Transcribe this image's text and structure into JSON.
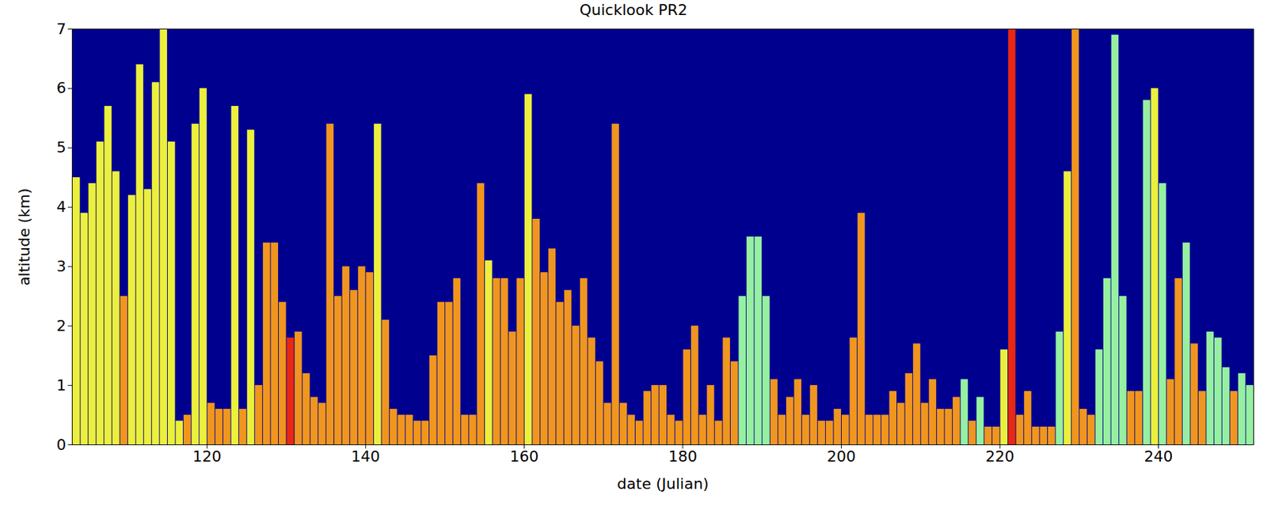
{
  "chart_data": {
    "type": "bar",
    "title": "Quicklook PR2",
    "x_label": "date (Julian)",
    "y_label": "altitude (km)",
    "xlim": [
      103,
      252
    ],
    "xticks": [
      120,
      140,
      160,
      180,
      200,
      220,
      240
    ],
    "ylim": [
      0,
      7
    ],
    "yticks": [
      0,
      1,
      2,
      3,
      4,
      5,
      6,
      7
    ],
    "grid": false,
    "x": [
      103,
      104,
      105,
      106,
      107,
      108,
      109,
      110,
      111,
      112,
      113,
      114,
      115,
      116,
      117,
      118,
      119,
      120,
      121,
      122,
      123,
      124,
      125,
      126,
      127,
      128,
      129,
      130,
      131,
      132,
      133,
      134,
      135,
      136,
      137,
      138,
      139,
      140,
      141,
      142,
      143,
      144,
      145,
      146,
      147,
      148,
      149,
      150,
      151,
      152,
      153,
      154,
      155,
      156,
      157,
      158,
      159,
      160,
      161,
      162,
      163,
      164,
      165,
      166,
      167,
      168,
      169,
      170,
      171,
      172,
      173,
      174,
      175,
      176,
      177,
      178,
      179,
      180,
      181,
      182,
      183,
      184,
      185,
      186,
      187,
      188,
      189,
      190,
      191,
      192,
      193,
      194,
      195,
      196,
      197,
      198,
      199,
      200,
      201,
      202,
      203,
      204,
      205,
      206,
      207,
      208,
      209,
      210,
      211,
      212,
      213,
      214,
      215,
      216,
      217,
      218,
      219,
      220,
      221,
      222,
      223,
      224,
      225,
      226,
      227,
      228,
      229,
      230,
      231,
      232,
      233,
      234,
      235,
      236,
      237,
      238,
      239,
      240,
      241,
      242,
      243,
      244,
      245,
      246,
      247,
      248,
      249,
      250,
      251
    ],
    "values": [
      4.5,
      3.9,
      4.4,
      5.1,
      5.7,
      4.6,
      2.5,
      4.2,
      6.4,
      4.3,
      6.1,
      7,
      5.1,
      0.4,
      0.5,
      5.4,
      6.0,
      0.7,
      0.6,
      0.6,
      5.7,
      0.6,
      5.3,
      1.0,
      3.4,
      3.4,
      2.4,
      1.8,
      1.9,
      1.2,
      0.8,
      0.7,
      5.4,
      2.5,
      3.0,
      2.6,
      3.0,
      2.9,
      5.4,
      2.1,
      0.6,
      0.5,
      0.5,
      0.4,
      0.4,
      1.5,
      2.4,
      2.4,
      2.8,
      0.5,
      0.5,
      4.4,
      3.1,
      2.8,
      2.8,
      1.9,
      2.8,
      5.9,
      3.8,
      2.9,
      3.3,
      2.4,
      2.6,
      2.0,
      2.8,
      1.8,
      1.4,
      0.7,
      5.4,
      0.7,
      0.5,
      0.4,
      0.9,
      1.0,
      1.0,
      0.5,
      0.4,
      1.6,
      2.0,
      0.5,
      1.0,
      0.4,
      1.8,
      1.4,
      2.5,
      3.5,
      3.5,
      2.5,
      1.1,
      0.5,
      0.8,
      1.1,
      0.5,
      1.0,
      0.4,
      0.4,
      0.6,
      0.5,
      1.8,
      3.9,
      0.5,
      0.5,
      0.5,
      0.9,
      0.7,
      1.2,
      1.7,
      0.7,
      1.1,
      0.6,
      0.6,
      0.8,
      1.1,
      0.4,
      0.8,
      0.3,
      0.3,
      1.6,
      7,
      0.5,
      0.9,
      0.3,
      0.3,
      0.3,
      1.9,
      4.6,
      7,
      0.6,
      0.5,
      1.6,
      2.8,
      6.9,
      2.5,
      0.9,
      0.9,
      5.8,
      6.0,
      4.4,
      1.1,
      2.8,
      3.4,
      1.7,
      0.9,
      1.9,
      1.8,
      1.3,
      0.9,
      1.2,
      1.0
    ],
    "colors": [
      "#ecf03c",
      "#ecf03c",
      "#ecf03c",
      "#ecf03c",
      "#ecf03c",
      "#ecf03c",
      "#f0961e",
      "#ecf03c",
      "#ecf03c",
      "#ecf03c",
      "#ecf03c",
      "#ecf03c",
      "#ecf03c",
      "#ecf03c",
      "#f0961e",
      "#ecf03c",
      "#ecf03c",
      "#f0961e",
      "#f0961e",
      "#f0961e",
      "#ecf03c",
      "#f0961e",
      "#ecf03c",
      "#f0961e",
      "#f0961e",
      "#f0961e",
      "#f0961e",
      "#e62814",
      "#f0961e",
      "#f0961e",
      "#f0961e",
      "#f0961e",
      "#f0961e",
      "#f0961e",
      "#f0961e",
      "#f0961e",
      "#f0961e",
      "#f0961e",
      "#ecf03c",
      "#f0961e",
      "#f0961e",
      "#f0961e",
      "#f0961e",
      "#f0961e",
      "#f0961e",
      "#f0961e",
      "#f0961e",
      "#f0961e",
      "#f0961e",
      "#f0961e",
      "#f0961e",
      "#f0961e",
      "#ecf03c",
      "#f0961e",
      "#f0961e",
      "#f0961e",
      "#f0961e",
      "#ecf03c",
      "#f0961e",
      "#f0961e",
      "#f0961e",
      "#f0961e",
      "#f0961e",
      "#f0961e",
      "#f0961e",
      "#f0961e",
      "#f0961e",
      "#f0961e",
      "#f0961e",
      "#f0961e",
      "#f0961e",
      "#f0961e",
      "#f0961e",
      "#f0961e",
      "#f0961e",
      "#f0961e",
      "#f0961e",
      "#f0961e",
      "#f0961e",
      "#f0961e",
      "#f0961e",
      "#f0961e",
      "#f0961e",
      "#f0961e",
      "#96f0a0",
      "#96f0a0",
      "#96f0a0",
      "#96f0a0",
      "#f0961e",
      "#f0961e",
      "#f0961e",
      "#f0961e",
      "#f0961e",
      "#f0961e",
      "#f0961e",
      "#f0961e",
      "#f0961e",
      "#f0961e",
      "#f0961e",
      "#f0961e",
      "#f0961e",
      "#f0961e",
      "#f0961e",
      "#f0961e",
      "#f0961e",
      "#f0961e",
      "#f0961e",
      "#f0961e",
      "#f0961e",
      "#f0961e",
      "#f0961e",
      "#f0961e",
      "#96f0a0",
      "#f0961e",
      "#96f0a0",
      "#f0961e",
      "#f0961e",
      "#ecf03c",
      "#e62814",
      "#f0961e",
      "#f0961e",
      "#f0961e",
      "#f0961e",
      "#f0961e",
      "#96f0a0",
      "#ecf03c",
      "#f0961e",
      "#f0961e",
      "#f0961e",
      "#96f0a0",
      "#96f0a0",
      "#96f0a0",
      "#96f0a0",
      "#f0961e",
      "#f0961e",
      "#96f0a0",
      "#ecf03c",
      "#96f0a0",
      "#f0961e",
      "#f0961e",
      "#96f0a0",
      "#f0961e",
      "#f0961e",
      "#96f0a0",
      "#96f0a0",
      "#96f0a0",
      "#f0961e",
      "#96f0a0",
      "#96f0a0"
    ]
  }
}
